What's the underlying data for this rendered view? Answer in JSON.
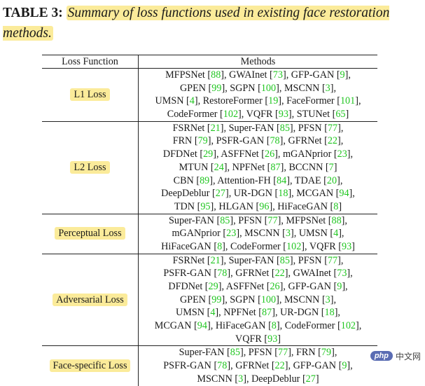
{
  "caption": {
    "label": "TABLE 3:",
    "text": "Summary of loss functions used in existing face restoration methods."
  },
  "table": {
    "headers": [
      "Loss Function",
      "Methods"
    ],
    "rows": [
      {
        "loss": "L1 Loss",
        "lines": [
          "MFPSNet [88], GWAInet [73], GFP-GAN [9],",
          "GPEN [99], SGPN [100], MSCNN [3],",
          "UMSN [4], RestoreFormer [19], FaceFormer [101],",
          "CodeFormer [102], VQFR [93], STUNet [65]"
        ]
      },
      {
        "loss": "L2 Loss",
        "lines": [
          "FSRNet [21], Super-FAN [85], PFSN [77],",
          "FRN [79], PSFR-GAN [78], GFRNet [22],",
          "DFDNet [29], ASFFNet [26], mGANprior [23],",
          "MTUN [24], NPFNet [87], BCCNN [7]",
          "CBN [89], Attention-FH [84], TDAE [20],",
          "DeepDeblur [27], UR-DGN [18], MCGAN [94],",
          "TDN [95], HLGAN [96], HiFaceGAN [8]"
        ]
      },
      {
        "loss": "Perceptual Loss",
        "lines": [
          "Super-FAN [85], PFSN [77], MFPSNet [88],",
          "mGANprior [23], MSCNN [3], UMSN [4],",
          "HiFaceGAN [8], CodeFormer [102], VQFR [93]"
        ]
      },
      {
        "loss": "Adversarial Loss",
        "lines": [
          "FSRNet [21], Super-FAN [85], PFSN [77],",
          "PSFR-GAN [78], GFRNet [22], GWAInet [73],",
          "DFDNet [29], ASFFNet [26], GFP-GAN [9],",
          "GPEN [99], SGPN [100], MSCNN [3],",
          "UMSN [4], NPFNet [87], UR-DGN [18],",
          "MCGAN [94], HiFaceGAN [8], CodeFormer [102],",
          "VQFR [93]"
        ]
      },
      {
        "loss": "Face-specific Loss",
        "lines": [
          "Super-FAN [85], PFSN [77], FRN [79],",
          "PSFR-GAN [78], GFRNet [22], GFP-GAN [9],",
          "MSCNN [3], DeepDeblur [27]"
        ]
      }
    ]
  },
  "watermark": {
    "badge": "php",
    "text": "中文网"
  },
  "colors": {
    "highlight": "#fbeb9a",
    "citation": "#21c621"
  }
}
